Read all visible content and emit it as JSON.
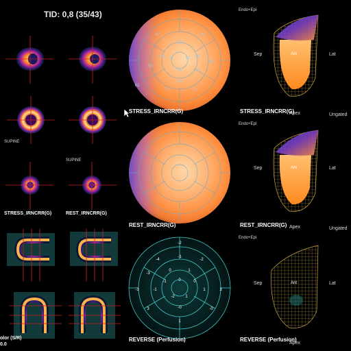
{
  "header": {
    "tid": "TID: 0,8 (35/43)"
  },
  "slices": {
    "supine_left": "SUPINE",
    "supine_right": "SUPINE",
    "stress_label": "STRESS_IRNCRR(G)",
    "rest_label": "REST_IRNCRR(G)",
    "color_label_1": "olor (S/R)",
    "color_label_2": "0.0"
  },
  "polar_maps": {
    "stress_label": "STRESS_IRNCRR(G)",
    "rest_label": "REST_IRNCRR(G)",
    "reverse_label": "REVERSE (Perfusion)",
    "stress_segments": [
      "68",
      "69",
      "85",
      "82",
      "80",
      "62",
      "78",
      "81",
      "83",
      "85",
      "73",
      "71",
      "88",
      "90",
      "87"
    ],
    "reverse_segments": [
      "-2",
      "-1",
      "-4",
      "-2",
      "-3",
      "0",
      "1",
      "0",
      "-1",
      "0",
      "-3",
      "3",
      "-1",
      "1",
      "-2",
      "1",
      "-0",
      "3",
      "-0",
      "1"
    ]
  },
  "models": {
    "endo_epi": "Endo+Epi",
    "sep": "Sep",
    "ant": "Ant",
    "lat": "Lat",
    "apex": "Apex",
    "ungated": "Ungated",
    "stress_label": "STRESS_IRNCRR(G)",
    "rest_label": "REST_IRNCRR(G)",
    "reverse_label": "REVERSE (Perfusion)"
  },
  "colors": {
    "background": "#000000",
    "crosshair": "#cc2222",
    "polar_grid": "#6aa8c8",
    "reverse_grid": "#40c8c8",
    "mesh": "#c9a640"
  }
}
